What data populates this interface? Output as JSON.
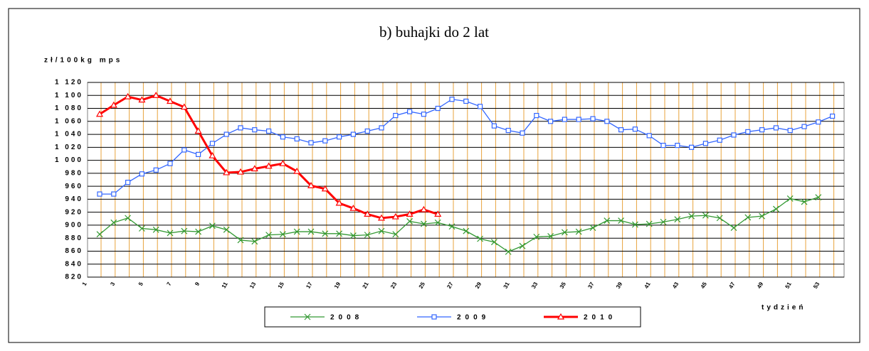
{
  "chart_data": {
    "type": "line",
    "title": "b) buhajki do 2 lat",
    "y_label": "zł/100kg mps",
    "x_label": "tydzień",
    "categories": [
      "1",
      null,
      "3",
      null,
      "5",
      null,
      "7",
      null,
      "9",
      null,
      "11",
      null,
      "13",
      null,
      "15",
      null,
      "17",
      null,
      "19",
      null,
      "21",
      null,
      "23",
      null,
      "25",
      null,
      "27",
      null,
      "29",
      null,
      "31",
      null,
      "33",
      null,
      "35",
      null,
      "37",
      null,
      "39",
      null,
      "41",
      null,
      "43",
      null,
      "45",
      null,
      "47",
      null,
      "49",
      null,
      "51",
      null,
      "53",
      null
    ],
    "series": [
      {
        "name": "2008",
        "color": "#339933",
        "marker": "x",
        "values": [
          null,
          886,
          904,
          911,
          895,
          893,
          888,
          891,
          890,
          899,
          893,
          877,
          875,
          885,
          886,
          890,
          890,
          887,
          887,
          884,
          885,
          891,
          886,
          906,
          902,
          904,
          898,
          891,
          879,
          874,
          859,
          868,
          882,
          883,
          889,
          890,
          896,
          907,
          907,
          901,
          902,
          905,
          909,
          914,
          915,
          911,
          896,
          912,
          914,
          925,
          941,
          936,
          943,
          null
        ]
      },
      {
        "name": "2009",
        "color": "#3366ff",
        "marker": "square",
        "values": [
          null,
          948,
          948,
          966,
          979,
          985,
          995,
          1016,
          1009,
          1026,
          1040,
          1050,
          1047,
          1045,
          1036,
          1033,
          1027,
          1030,
          1036,
          1040,
          1045,
          1050,
          1069,
          1075,
          1071,
          1080,
          1094,
          1091,
          1083,
          1053,
          1046,
          1042,
          1069,
          1060,
          1063,
          1063,
          1064,
          1060,
          1047,
          1048,
          1038,
          1023,
          1023,
          1020,
          1026,
          1031,
          1039,
          1044,
          1047,
          1050,
          1046,
          1052,
          1059,
          1068
        ]
      },
      {
        "name": "2010",
        "color": "#ff0000",
        "marker": "triangle",
        "values": [
          null,
          1071,
          1085,
          1098,
          1093,
          1100,
          1091,
          1082,
          1045,
          1007,
          981,
          982,
          987,
          991,
          995,
          983,
          961,
          956,
          934,
          926,
          917,
          911,
          913,
          917,
          924,
          917,
          null,
          null,
          null,
          null,
          null,
          null,
          null,
          null,
          null,
          null,
          null,
          null,
          null,
          null,
          null,
          null,
          null,
          null,
          null,
          null,
          null,
          null,
          null,
          null,
          null,
          null,
          null,
          null
        ]
      }
    ],
    "ylim": [
      820,
      1120
    ],
    "yticks": [
      820,
      840,
      860,
      880,
      900,
      920,
      940,
      960,
      980,
      {
        "value": 1000,
        "label": "1 000"
      },
      {
        "value": 1020,
        "label": "1 020"
      },
      {
        "value": 1040,
        "label": "1 040"
      },
      {
        "value": 1060,
        "label": "1 060"
      },
      {
        "value": 1080,
        "label": "1 080"
      },
      {
        "value": 1100,
        "label": "1 100"
      },
      {
        "value": 1120,
        "label": "1 120"
      }
    ],
    "grid": true,
    "legend": "bottom"
  }
}
